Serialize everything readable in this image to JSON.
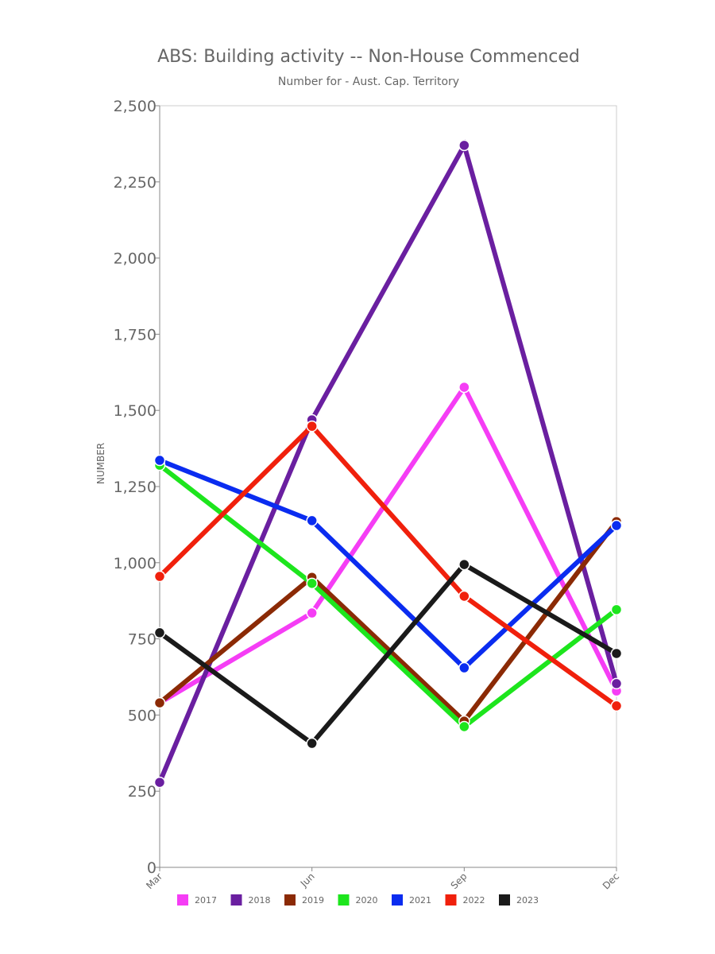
{
  "chart_data": {
    "type": "line",
    "title": "ABS: Building activity -- Non-House Commenced",
    "subtitle": "Number for - Aust. Cap. Territory",
    "y_label": "NUMBER",
    "categories": [
      "Mar",
      "Jun",
      "Sep",
      "Dec"
    ],
    "series": [
      {
        "name": "2017",
        "color": "#f53df5",
        "values": [
          540,
          835,
          1576,
          579
        ]
      },
      {
        "name": "2018",
        "color": "#6a1fa0",
        "values": [
          279,
          1469,
          2370,
          603
        ]
      },
      {
        "name": "2019",
        "color": "#8b2a05",
        "values": [
          540,
          952,
          480,
          1135
        ]
      },
      {
        "name": "2020",
        "color": "#1de51d",
        "values": [
          1320,
          932,
          462,
          846
        ]
      },
      {
        "name": "2021",
        "color": "#0a2cf0",
        "values": [
          1336,
          1138,
          655,
          1122
        ]
      },
      {
        "name": "2022",
        "color": "#f0200c",
        "values": [
          955,
          1448,
          890,
          530
        ]
      },
      {
        "name": "2023",
        "color": "#1a1a1a",
        "values": [
          770,
          407,
          994,
          702
        ]
      }
    ],
    "ylim": [
      0,
      2500
    ],
    "yticks": [
      0,
      250,
      500,
      750,
      {
        "value": 1000,
        "label": "1,000"
      },
      {
        "value": 1250,
        "label": "1,250"
      },
      {
        "value": 1500,
        "label": "1,500"
      },
      {
        "value": 1750,
        "label": "1,750"
      },
      {
        "value": 2000,
        "label": "2,000"
      },
      {
        "value": 2250,
        "label": "2,250"
      },
      {
        "value": 2500,
        "label": "2,500"
      }
    ]
  }
}
